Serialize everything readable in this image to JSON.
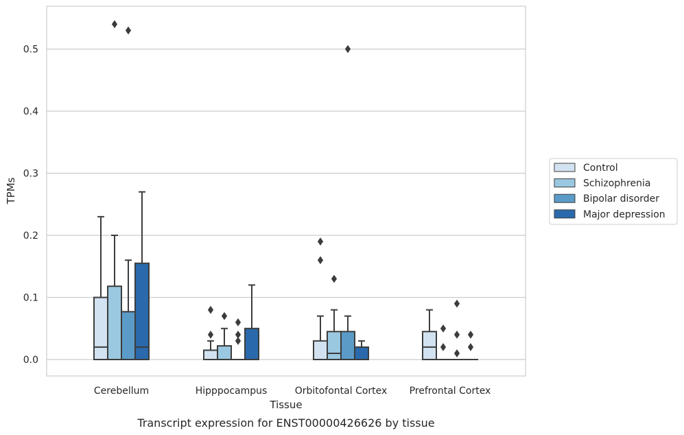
{
  "chart_data": {
    "type": "box",
    "xlabel": "Tissue",
    "ylabel": "TPMs",
    "caption": "Transcript expression for ENST00000426626 by tissue",
    "ylim": [
      -0.026,
      0.566
    ],
    "yticks": [
      "0.0",
      "0.1",
      "0.2",
      "0.3",
      "0.4",
      "0.5"
    ],
    "grid": true,
    "legend_position": "right",
    "categories": [
      "Cerebellum",
      "Hipppocampus",
      "Orbitofontal Cortex",
      "Prefrontal Cortex"
    ],
    "series": [
      {
        "name": "Control",
        "color": "#d2e2f1",
        "boxes": [
          {
            "q1": 0.0,
            "median": 0.02,
            "q3": 0.1,
            "whisker_low": 0.0,
            "whisker_high": 0.23,
            "outliers": []
          },
          {
            "q1": 0.0,
            "median": 0.0,
            "q3": 0.015,
            "whisker_low": 0.0,
            "whisker_high": 0.03,
            "outliers": [
              0.04,
              0.08
            ]
          },
          {
            "q1": 0.0,
            "median": 0.0,
            "q3": 0.03,
            "whisker_low": 0.0,
            "whisker_high": 0.07,
            "outliers": [
              0.16,
              0.19
            ]
          },
          {
            "q1": 0.0,
            "median": 0.02,
            "q3": 0.045,
            "whisker_low": 0.0,
            "whisker_high": 0.08,
            "outliers": []
          }
        ]
      },
      {
        "name": "Schizophrenia",
        "color": "#9ac8e0",
        "boxes": [
          {
            "q1": 0.0,
            "median": 0.0,
            "q3": 0.118,
            "whisker_low": 0.0,
            "whisker_high": 0.2,
            "outliers": [
              0.54
            ]
          },
          {
            "q1": 0.0,
            "median": 0.0,
            "q3": 0.022,
            "whisker_low": 0.0,
            "whisker_high": 0.05,
            "outliers": [
              0.07
            ]
          },
          {
            "q1": 0.0,
            "median": 0.01,
            "q3": 0.045,
            "whisker_low": 0.0,
            "whisker_high": 0.08,
            "outliers": [
              0.13
            ]
          },
          {
            "q1": 0.0,
            "median": 0.0,
            "q3": 0.0,
            "whisker_low": 0.0,
            "whisker_high": 0.0,
            "outliers": [
              0.02,
              0.05
            ]
          }
        ]
      },
      {
        "name": "Bipolar disorder",
        "color": "#5b9bc8",
        "boxes": [
          {
            "q1": 0.0,
            "median": 0.0,
            "q3": 0.077,
            "whisker_low": 0.0,
            "whisker_high": 0.16,
            "outliers": [
              0.53
            ]
          },
          {
            "q1": 0.0,
            "median": 0.0,
            "q3": 0.0,
            "whisker_low": 0.0,
            "whisker_high": 0.0,
            "outliers": [
              0.03,
              0.04,
              0.06
            ]
          },
          {
            "q1": 0.0,
            "median": 0.0,
            "q3": 0.045,
            "whisker_low": 0.0,
            "whisker_high": 0.07,
            "outliers": [
              0.5
            ]
          },
          {
            "q1": 0.0,
            "median": 0.0,
            "q3": 0.0,
            "whisker_low": 0.0,
            "whisker_high": 0.0,
            "outliers": [
              0.01,
              0.04,
              0.09
            ]
          }
        ]
      },
      {
        "name": "Major depression",
        "color": "#2a6aac",
        "boxes": [
          {
            "q1": 0.0,
            "median": 0.02,
            "q3": 0.155,
            "whisker_low": 0.0,
            "whisker_high": 0.27,
            "outliers": []
          },
          {
            "q1": 0.0,
            "median": 0.0,
            "q3": 0.05,
            "whisker_low": 0.0,
            "whisker_high": 0.12,
            "outliers": []
          },
          {
            "q1": 0.0,
            "median": 0.0,
            "q3": 0.02,
            "whisker_low": 0.0,
            "whisker_high": 0.03,
            "outliers": []
          },
          {
            "q1": 0.0,
            "median": 0.0,
            "q3": 0.0,
            "whisker_low": 0.0,
            "whisker_high": 0.0,
            "outliers": [
              0.02,
              0.04
            ]
          }
        ]
      }
    ]
  }
}
